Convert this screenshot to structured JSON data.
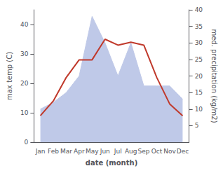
{
  "chart_data": {
    "type": "line",
    "categories": [
      "Jan",
      "Feb",
      "Mar",
      "Apr",
      "May",
      "Jun",
      "Jul",
      "Aug",
      "Sep",
      "Oct",
      "Nov",
      "Dec"
    ],
    "series": [
      {
        "type": "area",
        "color": "#bfc9e8",
        "axis": "y2",
        "values": [
          10,
          12,
          15,
          20,
          38,
          30,
          20,
          30,
          17,
          17,
          17,
          13
        ]
      },
      {
        "type": "line",
        "color": "#c0392b",
        "values": [
          9,
          14,
          22,
          28,
          28,
          35,
          33,
          34,
          33,
          22,
          13,
          9
        ]
      }
    ],
    "xlabel": "date (month)",
    "ylabel": "max temp (C)",
    "y2label": "med. precipitation (kg/m2)",
    "ylim": [
      0,
      45
    ],
    "yticks": [
      0,
      10,
      20,
      30,
      40
    ],
    "y2lim": [
      0,
      40
    ],
    "y2ticks": [
      5,
      10,
      15,
      20,
      25,
      30,
      35,
      40
    ],
    "grid": false
  }
}
